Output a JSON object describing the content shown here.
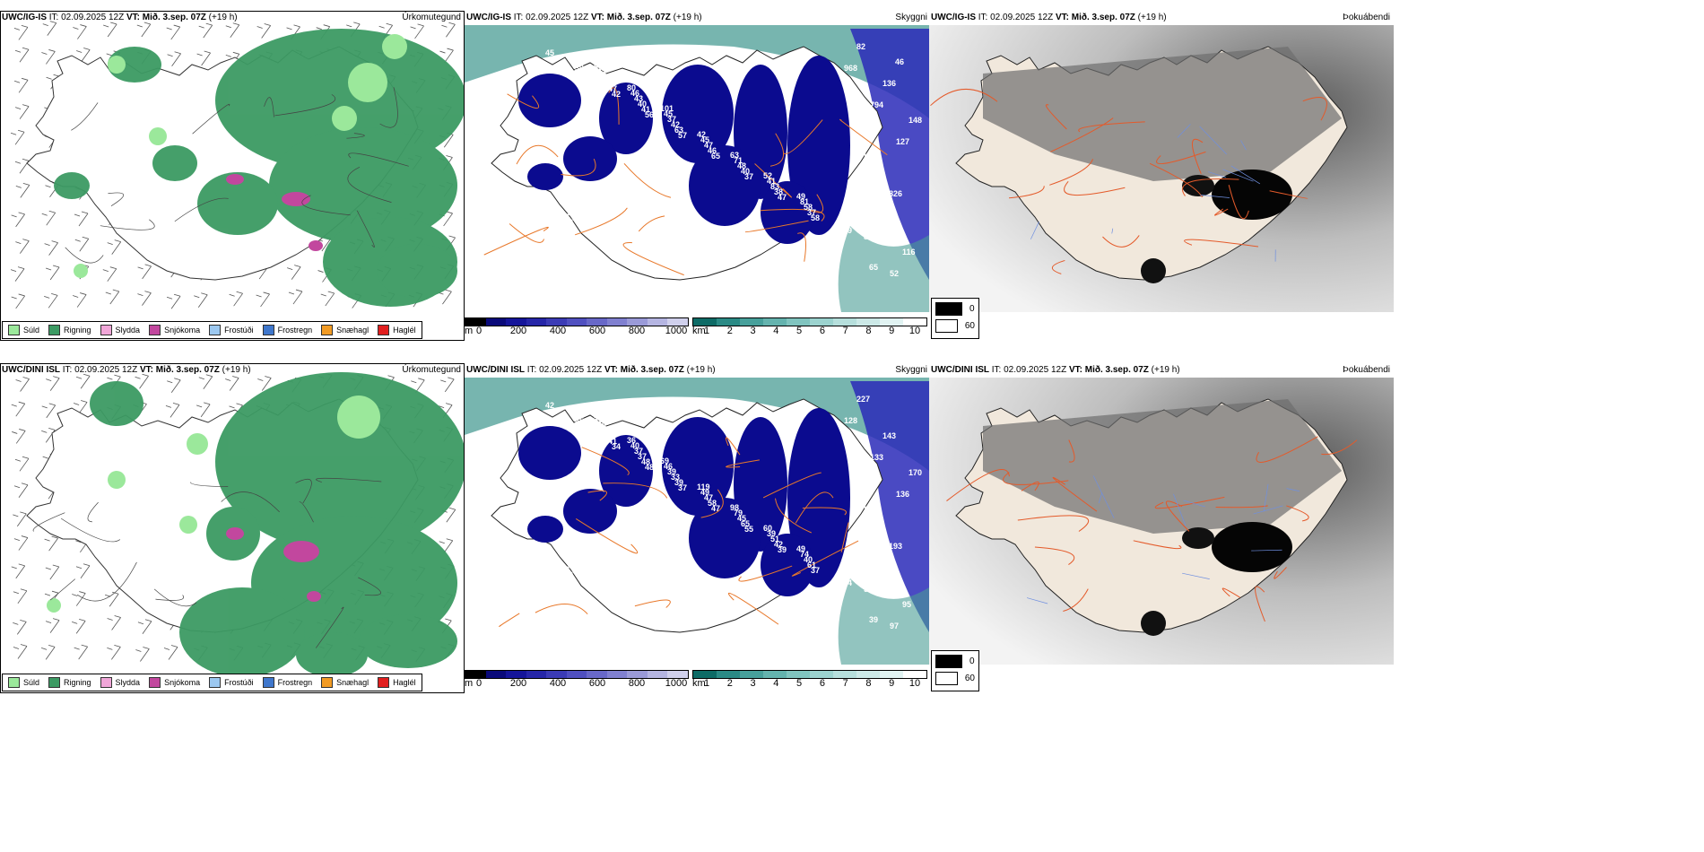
{
  "rows": [
    {
      "precip": {
        "model": "UWC/IG-IS",
        "it": "IT: 02.09.2025 12Z",
        "vt": "VT: Mið. 3.sep. 07Z",
        "lead": "(+19 h)",
        "title": "Úrkomutegund"
      },
      "cloud": {
        "model": "UWC/IG-IS",
        "it": "IT: 02.09.2025 12Z",
        "vt": "VT: Mið. 3.sep. 07Z",
        "lead": "(+19 h)",
        "title": "Skyggni"
      },
      "fog": {
        "model": "UWC/IG-IS",
        "it": "IT: 02.09.2025 12Z",
        "vt": "VT: Mið. 3.sep. 07Z",
        "lead": "(+19 h)",
        "title": "Þokuábendi"
      },
      "values": [
        "45",
        "61",
        "42",
        "56",
        "57",
        "65",
        "37",
        "47",
        "58",
        "39",
        "47",
        "41",
        "63",
        "46",
        "40",
        "38",
        "37",
        "57",
        "70",
        "40",
        "42",
        "47",
        "48",
        "83",
        "58",
        "45",
        "50",
        "43",
        "37",
        "45",
        "71",
        "41",
        "81",
        "38",
        "63",
        "46",
        "45",
        "42",
        "63",
        "52",
        "49",
        "37",
        "89",
        "80",
        "101",
        "82",
        "52",
        "968",
        "794",
        "127",
        "100",
        "116",
        "116",
        "82",
        "136",
        "148",
        "190",
        "826",
        "59",
        "65",
        "46"
      ]
    },
    {
      "precip": {
        "model": "UWC/DINI ISL",
        "it": "IT: 02.09.2025 12Z",
        "vt": "VT: Mið. 3.sep. 07Z",
        "lead": "(+19 h)",
        "title": "Úrkomutegund"
      },
      "cloud": {
        "model": "UWC/DINI ISL",
        "it": "IT: 02.09.2025 12Z",
        "vt": "VT: Mið. 3.sep. 07Z",
        "lead": "(+19 h)",
        "title": "Skyggni"
      },
      "fog": {
        "model": "UWC/DINI ISL",
        "it": "IT: 02.09.2025 12Z",
        "vt": "VT: Mið. 3.sep. 07Z",
        "lead": "(+19 h)",
        "title": "Þokuábendi"
      },
      "values": [
        "42",
        "42",
        "34",
        "48",
        "37",
        "47",
        "55",
        "39",
        "37",
        "45",
        "41",
        "48",
        "39",
        "58",
        "65",
        "42",
        "61",
        "36",
        "43",
        "37",
        "33",
        "47",
        "45",
        "51",
        "40",
        "50",
        "48",
        "37",
        "39",
        "49",
        "79",
        "39",
        "74",
        "42",
        "49",
        "40",
        "46",
        "119",
        "98",
        "60",
        "49",
        "52",
        "39",
        "36",
        "69",
        "52",
        "97",
        "128",
        "133",
        "136",
        "97",
        "152",
        "95",
        "227",
        "143",
        "170",
        "126",
        "193",
        "84",
        "39"
      ]
    }
  ],
  "precip_legend": [
    {
      "label": "Súld",
      "color": "#9be89b"
    },
    {
      "label": "Rigning",
      "color": "#3c9a63"
    },
    {
      "label": "Slydda",
      "color": "#f0a6d8"
    },
    {
      "label": "Snjókoma",
      "color": "#c2479e"
    },
    {
      "label": "Frostúði",
      "color": "#9cc8f0"
    },
    {
      "label": "Frostregn",
      "color": "#3f77cc"
    },
    {
      "label": "Snæhagl",
      "color": "#f29b24"
    },
    {
      "label": "Haglél",
      "color": "#e11e1e"
    }
  ],
  "ceiling_scale": {
    "unit": "m",
    "ticks": [
      "0",
      "200",
      "400",
      "600",
      "800",
      "1000"
    ],
    "colors": [
      "#000000",
      "#0a0a7a",
      "#15159a",
      "#2626a8",
      "#3b3bb5",
      "#5050c0",
      "#6868c8",
      "#8080d0",
      "#9a9ad8",
      "#b5b5e2",
      "#d0d0ec"
    ]
  },
  "visibility_scale": {
    "unit": "km",
    "ticks": [
      "1",
      "2",
      "3",
      "4",
      "5",
      "6",
      "7",
      "8",
      "9",
      "10"
    ],
    "colors": [
      "#0d6b66",
      "#2a8a85",
      "#47a09b",
      "#64b3ae",
      "#80c4bf",
      "#9cd3cf",
      "#b6dfdc",
      "#cce9e7",
      "#e1f3f2",
      "#ffffff"
    ]
  },
  "fog_legend": [
    {
      "label": "0",
      "color": "#000000"
    },
    {
      "label": "60",
      "color": "#ffffff"
    }
  ],
  "colors": {
    "rain": "#3c9a63",
    "drizzle": "#9be89b",
    "snow": "#c2479e",
    "sleet": "#f0a6d8",
    "ceiling": "#0b0b8f",
    "sea": "#4a9c94",
    "roads": "#e8782a",
    "land": "#f1e8dc"
  }
}
